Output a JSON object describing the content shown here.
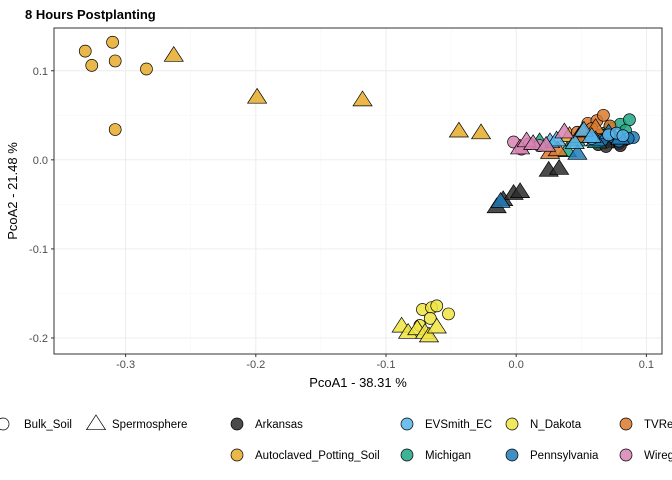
{
  "chart_data": {
    "type": "scatter",
    "title": "8 Hours Postplanting",
    "xlabel": "PcoA1 - 38.31 %",
    "ylabel": "PcoA2 - 21.48 %",
    "xlim": [
      -0.355,
      0.112
    ],
    "ylim": [
      -0.218,
      0.148
    ],
    "x_ticks": [
      -0.3,
      -0.2,
      -0.1,
      0.0,
      0.1
    ],
    "x_tick_labels": [
      "-0.3",
      "-0.2",
      "-0.1",
      "0.0",
      "0.1"
    ],
    "y_ticks": [
      -0.2,
      -0.1,
      0.0,
      0.1
    ],
    "y_tick_labels": [
      "-0.2",
      "-0.1",
      "0.0",
      "0.1"
    ],
    "grid": true,
    "legend_position": "bottom",
    "shape_legend": [
      {
        "name": "Bulk_Soil",
        "shape": "circle"
      },
      {
        "name": "Spermosphere",
        "shape": "triangle"
      }
    ],
    "color_legend": [
      {
        "name": "Arkansas",
        "color": "#2b2b2b"
      },
      {
        "name": "Autoclaved_Potting_Soil",
        "color": "#E6AB2A"
      },
      {
        "name": "EVSmith_EC",
        "color": "#56B4E9"
      },
      {
        "name": "Michigan",
        "color": "#1FA584"
      },
      {
        "name": "N_Dakota",
        "color": "#F0E442"
      },
      {
        "name": "Pennsylvania",
        "color": "#1F7BB8"
      },
      {
        "name": "TVRe",
        "color": "#D97A2E"
      },
      {
        "name": "Wireg",
        "color": "#D884B3"
      }
    ],
    "series": [
      {
        "name": "Autoclaved_Potting_Soil",
        "shape": "circle",
        "points": [
          [
            -0.331,
            0.122
          ],
          [
            -0.31,
            0.132
          ],
          [
            -0.326,
            0.106
          ],
          [
            -0.308,
            0.111
          ],
          [
            -0.284,
            0.102
          ],
          [
            -0.308,
            0.034
          ]
        ]
      },
      {
        "name": "Autoclaved_Potting_Soil",
        "shape": "triangle",
        "points": [
          [
            -0.263,
            0.117
          ],
          [
            -0.199,
            0.07
          ],
          [
            -0.118,
            0.067
          ],
          [
            -0.044,
            0.032
          ],
          [
            -0.027,
            0.03
          ],
          [
            0.041,
            0.027
          ]
        ]
      },
      {
        "name": "N_Dakota",
        "shape": "circle",
        "points": [
          [
            -0.072,
            -0.168
          ],
          [
            -0.065,
            -0.166
          ],
          [
            -0.061,
            -0.164
          ],
          [
            -0.052,
            -0.173
          ],
          [
            -0.066,
            -0.178
          ],
          [
            -0.074,
            -0.186
          ]
        ]
      },
      {
        "name": "N_Dakota",
        "shape": "triangle",
        "points": [
          [
            -0.088,
            -0.187
          ],
          [
            -0.083,
            -0.194
          ],
          [
            -0.076,
            -0.19
          ],
          [
            -0.07,
            -0.194
          ],
          [
            -0.067,
            -0.198
          ],
          [
            -0.061,
            -0.188
          ]
        ]
      },
      {
        "name": "Arkansas",
        "shape": "circle",
        "points": [
          [
            0.063,
            0.017
          ],
          [
            0.068,
            0.019
          ],
          [
            0.071,
            0.023
          ],
          [
            0.074,
            0.02
          ],
          [
            0.076,
            0.024
          ],
          [
            0.079,
            0.018
          ],
          [
            0.083,
            0.022
          ],
          [
            0.069,
            0.015
          ],
          [
            0.08,
            0.016
          ]
        ]
      },
      {
        "name": "Arkansas",
        "shape": "triangle",
        "points": [
          [
            -0.015,
            -0.053
          ],
          [
            -0.01,
            -0.045
          ],
          [
            -0.002,
            -0.038
          ],
          [
            0.003,
            -0.036
          ],
          [
            0.025,
            -0.012
          ],
          [
            0.033,
            -0.01
          ]
        ]
      },
      {
        "name": "Michigan",
        "shape": "circle",
        "points": [
          [
            0.08,
            0.04
          ],
          [
            0.087,
            0.045
          ],
          [
            0.072,
            0.036
          ],
          [
            0.068,
            0.03
          ],
          [
            0.084,
            0.033
          ]
        ]
      },
      {
        "name": "Michigan",
        "shape": "triangle",
        "points": [
          [
            0.018,
            0.02
          ],
          [
            0.039,
            0.01
          ],
          [
            0.046,
            0.022
          ],
          [
            0.056,
            0.027
          ],
          [
            0.062,
            0.02
          ]
        ]
      },
      {
        "name": "TVRe",
        "shape": "circle",
        "points": [
          [
            0.055,
            0.041
          ],
          [
            0.062,
            0.044
          ],
          [
            0.067,
            0.05
          ],
          [
            0.058,
            0.035
          ],
          [
            0.047,
            0.031
          ],
          [
            0.072,
            0.038
          ],
          [
            0.065,
            0.028
          ]
        ]
      },
      {
        "name": "TVRe",
        "shape": "triangle",
        "points": [
          [
            0.026,
            0.008
          ],
          [
            0.032,
            0.011
          ],
          [
            0.048,
            0.026
          ],
          [
            0.051,
            0.032
          ],
          [
            0.061,
            0.036
          ]
        ]
      },
      {
        "name": "Pennsylvania",
        "shape": "circle",
        "points": [
          [
            0.066,
            0.022
          ],
          [
            0.074,
            0.026
          ],
          [
            0.09,
            0.025
          ],
          [
            0.086,
            0.024
          ],
          [
            0.079,
            0.021
          ]
        ]
      },
      {
        "name": "Pennsylvania",
        "shape": "triangle",
        "points": [
          [
            -0.012,
            -0.047
          ],
          [
            0.047,
            0.007
          ],
          [
            0.061,
            0.022
          ],
          [
            0.071,
            0.03
          ],
          [
            0.08,
            0.024
          ]
        ]
      },
      {
        "name": "EVSmith_EC",
        "shape": "circle",
        "points": [
          [
            0.071,
            0.028
          ],
          [
            0.077,
            0.03
          ],
          [
            0.082,
            0.027
          ],
          [
            0.058,
            0.024
          ]
        ]
      },
      {
        "name": "EVSmith_EC",
        "shape": "triangle",
        "points": [
          [
            0.026,
            0.02
          ],
          [
            0.031,
            0.022
          ],
          [
            0.045,
            0.019
          ],
          [
            0.052,
            0.033
          ],
          [
            0.058,
            0.026
          ]
        ]
      },
      {
        "name": "Wireg",
        "shape": "circle",
        "points": [
          [
            -0.002,
            0.02
          ],
          [
            0.004,
            0.012
          ],
          [
            0.01,
            0.018
          ],
          [
            0.018,
            0.016
          ]
        ]
      },
      {
        "name": "Wireg",
        "shape": "triangle",
        "points": [
          [
            0.003,
            0.013
          ],
          [
            0.008,
            0.021
          ],
          [
            0.013,
            0.018
          ],
          [
            0.023,
            0.016
          ],
          [
            0.037,
            0.031
          ]
        ]
      }
    ]
  }
}
